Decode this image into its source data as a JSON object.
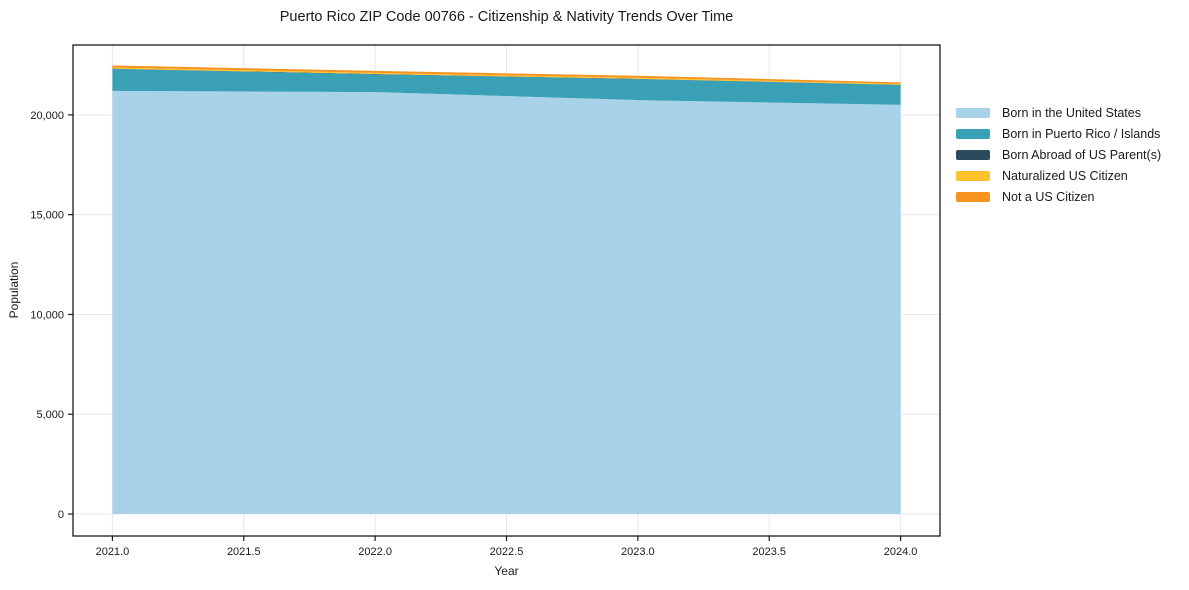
{
  "chart_data": {
    "type": "area",
    "stacked": true,
    "title": "Puerto Rico ZIP Code 00766 - Citizenship & Nativity Trends Over Time",
    "xlabel": "Year",
    "ylabel": "Population",
    "x": [
      2021,
      2022,
      2023,
      2024
    ],
    "series": [
      {
        "name": "Born in the United States",
        "color": "#a7d2e8",
        "values": [
          21200,
          21140,
          20740,
          20500
        ]
      },
      {
        "name": "Born in Puerto Rico / Islands",
        "color": "#3aa0b6",
        "values": [
          1100,
          890,
          1050,
          1000
        ]
      },
      {
        "name": "Born Abroad of US Parent(s)",
        "color": "#2b4a5c",
        "values": [
          15,
          15,
          15,
          10
        ]
      },
      {
        "name": "Naturalized US Citizen",
        "color": "#fcc32d",
        "values": [
          55,
          60,
          55,
          40
        ]
      },
      {
        "name": "Not a US Citizen",
        "color": "#f79421",
        "values": [
          105,
          100,
          100,
          75
        ]
      }
    ],
    "xlim": [
      2020.85,
      2024.15
    ],
    "ylim": [
      -1100,
      23500
    ],
    "xticks": [
      {
        "v": 2021.0,
        "label": "2021.0"
      },
      {
        "v": 2021.5,
        "label": "2021.5"
      },
      {
        "v": 2022.0,
        "label": "2022.0"
      },
      {
        "v": 2022.5,
        "label": "2022.5"
      },
      {
        "v": 2023.0,
        "label": "2023.0"
      },
      {
        "v": 2023.5,
        "label": "2023.5"
      },
      {
        "v": 2024.0,
        "label": "2024.0"
      }
    ],
    "yticks": [
      {
        "v": 0,
        "label": "0"
      },
      {
        "v": 5000,
        "label": "5,000"
      },
      {
        "v": 10000,
        "label": "10,000"
      },
      {
        "v": 15000,
        "label": "15,000"
      },
      {
        "v": 20000,
        "label": "20,000"
      }
    ],
    "grid": true,
    "legend_position": "right-outside"
  }
}
